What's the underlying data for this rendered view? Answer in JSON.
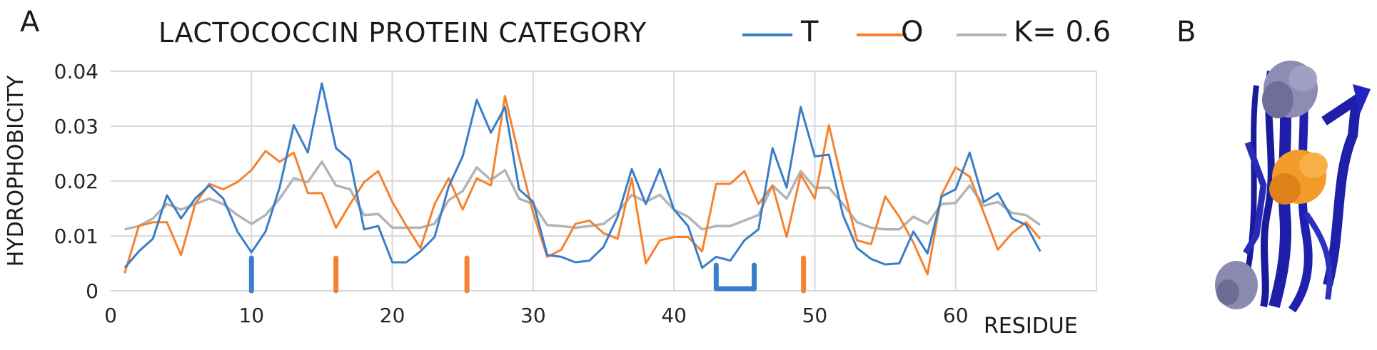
{
  "panels": {
    "a_label": "A",
    "b_label": "B"
  },
  "chart_data": {
    "type": "line",
    "title": "LACTOCOCCIN PROTEIN CATEGORY",
    "xlabel": "RESIDUE",
    "ylabel": "HYDROPHOBICITY",
    "xlim": [
      0,
      70
    ],
    "ylim": [
      0,
      0.04
    ],
    "x_ticks": [
      "0",
      "10",
      "20",
      "30",
      "40",
      "50",
      "60"
    ],
    "y_ticks": [
      "0",
      "0.01",
      "0.02",
      "0.03",
      "0.04"
    ],
    "grid": true,
    "legend_position": "top",
    "x": [
      1,
      2,
      3,
      4,
      5,
      6,
      7,
      8,
      9,
      10,
      11,
      12,
      13,
      14,
      15,
      16,
      17,
      18,
      19,
      20,
      21,
      22,
      23,
      24,
      25,
      26,
      27,
      28,
      29,
      30,
      31,
      32,
      33,
      34,
      35,
      36,
      37,
      38,
      39,
      40,
      41,
      42,
      43,
      44,
      45,
      46,
      47,
      48,
      49,
      50,
      51,
      52,
      53,
      54,
      55,
      56,
      57,
      58,
      59,
      60,
      61,
      62,
      63,
      64,
      65,
      66
    ],
    "series": [
      {
        "name": "T",
        "color": "#3a7dc9",
        "values": [
          0.0042,
          0.0072,
          0.0095,
          0.0174,
          0.0132,
          0.0168,
          0.0192,
          0.0168,
          0.0108,
          0.007,
          0.0108,
          0.0188,
          0.0302,
          0.0252,
          0.0378,
          0.026,
          0.0238,
          0.0112,
          0.0118,
          0.0052,
          0.0052,
          0.0072,
          0.0098,
          0.019,
          0.0245,
          0.0348,
          0.0288,
          0.0335,
          0.0185,
          0.0162,
          0.0065,
          0.0062,
          0.0052,
          0.0055,
          0.008,
          0.0135,
          0.0222,
          0.0158,
          0.0222,
          0.0148,
          0.0118,
          0.0042,
          0.0062,
          0.0055,
          0.0092,
          0.0112,
          0.026,
          0.0188,
          0.0335,
          0.0245,
          0.0248,
          0.0138,
          0.0078,
          0.0058,
          0.0048,
          0.005,
          0.0108,
          0.0068,
          0.0172,
          0.0185,
          0.0252,
          0.0162,
          0.0178,
          0.0132,
          0.012,
          0.0072
        ]
      },
      {
        "name": "O",
        "color": "#f5822f",
        "values": [
          0.0032,
          0.0118,
          0.0125,
          0.0125,
          0.0065,
          0.0158,
          0.0195,
          0.0185,
          0.0198,
          0.022,
          0.0255,
          0.0235,
          0.0252,
          0.0178,
          0.0178,
          0.0115,
          0.0158,
          0.0198,
          0.0218,
          0.0162,
          0.0118,
          0.0078,
          0.0158,
          0.0205,
          0.0148,
          0.0205,
          0.0192,
          0.0355,
          0.0245,
          0.0142,
          0.0062,
          0.0075,
          0.0122,
          0.0128,
          0.0105,
          0.0095,
          0.0205,
          0.005,
          0.0092,
          0.0098,
          0.0098,
          0.0072,
          0.0195,
          0.0195,
          0.0218,
          0.0158,
          0.0192,
          0.0098,
          0.0212,
          0.0168,
          0.0302,
          0.0192,
          0.0092,
          0.0085,
          0.0172,
          0.0135,
          0.0088,
          0.003,
          0.0175,
          0.0225,
          0.0208,
          0.0142,
          0.0075,
          0.0105,
          0.0125,
          0.0095
        ]
      },
      {
        "name": "K= 0.6",
        "color": "#b4b4b4",
        "values": [
          0.0112,
          0.0118,
          0.0132,
          0.0158,
          0.0148,
          0.0158,
          0.0168,
          0.0158,
          0.0138,
          0.0122,
          0.0138,
          0.0168,
          0.0205,
          0.0198,
          0.0235,
          0.0192,
          0.0185,
          0.0138,
          0.014,
          0.0115,
          0.0115,
          0.0115,
          0.0122,
          0.0165,
          0.0182,
          0.0225,
          0.0202,
          0.022,
          0.0168,
          0.0158,
          0.012,
          0.0118,
          0.0115,
          0.0118,
          0.0122,
          0.0142,
          0.0175,
          0.0162,
          0.0175,
          0.0148,
          0.0135,
          0.0112,
          0.0118,
          0.0118,
          0.0128,
          0.0138,
          0.0192,
          0.0168,
          0.0218,
          0.0188,
          0.0188,
          0.0158,
          0.0125,
          0.0115,
          0.0112,
          0.0112,
          0.0135,
          0.0122,
          0.0158,
          0.016,
          0.0192,
          0.0155,
          0.0162,
          0.0142,
          0.0138,
          0.012
        ]
      }
    ],
    "markers": [
      {
        "type": "tick",
        "x": 10,
        "color": "#3a7dc9"
      },
      {
        "type": "tick",
        "x": 16,
        "color": "#f5822f"
      },
      {
        "type": "tick",
        "x": 25.3,
        "color": "#f5822f"
      },
      {
        "type": "bracket",
        "x_start": 43,
        "x_end": 45.7,
        "color": "#3a7dc9"
      },
      {
        "type": "tick",
        "x": 49.2,
        "color": "#f5822f"
      }
    ]
  }
}
